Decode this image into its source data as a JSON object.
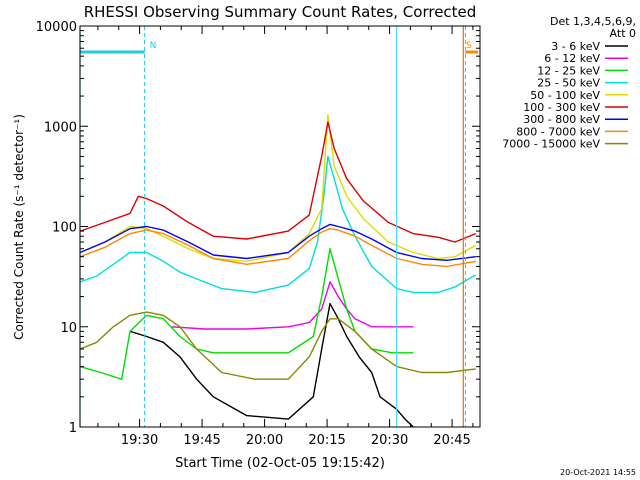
{
  "chart_data": {
    "type": "line",
    "title": "RHESSI Observing Summary Count Rates, Corrected",
    "xlabel": "Start Time (02-Oct-05 19:15:42)",
    "ylabel": "Corrected Count Rate (s⁻¹ detector⁻¹)",
    "yscale": "log",
    "ylim": [
      1,
      10000
    ],
    "xlim_minutes": [
      0,
      96
    ],
    "x_tick_labels": [
      "19:30",
      "19:45",
      "20:00",
      "20:15",
      "20:30",
      "20:45"
    ],
    "x_tick_minutes": [
      14.3,
      29.3,
      44.3,
      59.3,
      74.3,
      89.3
    ],
    "y_tick_labels": [
      "1",
      "10",
      "100",
      "1000",
      "10000"
    ],
    "y_tick_values": [
      1,
      10,
      100,
      1000,
      10000
    ],
    "legend_header": [
      "Det 1,3,4,5,6,9,",
      "Att 0"
    ],
    "legend_position": "top-right",
    "footer": "20-Oct-2021 14:55",
    "markers": [
      {
        "label": "N",
        "color": "#22ccdd",
        "bar_start": 0,
        "bar_end": 15.5,
        "line_at": 15.5
      },
      {
        "label": "S",
        "color": "#ff8800",
        "bar_start": 92.5,
        "bar_end": 95.5,
        "line_at": 92.5
      }
    ],
    "vlines": [
      {
        "x": 0,
        "color": "#44ddff"
      },
      {
        "x": 76,
        "color": "#44ddff"
      },
      {
        "x": 92,
        "color": "#dd7700"
      }
    ],
    "series": [
      {
        "name": "3 - 6 keV",
        "color": "#000000",
        "x": [
          12,
          16,
          20,
          24,
          28,
          32,
          40,
          50,
          56,
          58,
          60,
          62,
          64,
          67,
          70,
          72,
          76,
          78,
          80
        ],
        "y": [
          9,
          8,
          7,
          5,
          3,
          2,
          1.3,
          1.2,
          2,
          6,
          17,
          12,
          8,
          5,
          3.5,
          2,
          1.5,
          1.2,
          1
        ]
      },
      {
        "name": "6 - 12 keV",
        "color": "#ee00ee",
        "x": [
          22,
          30,
          40,
          50,
          55,
          58,
          60,
          62,
          64,
          66,
          70,
          75,
          80
        ],
        "y": [
          10,
          9.5,
          9.5,
          10,
          11,
          15,
          28,
          20,
          15,
          12,
          10,
          10,
          10
        ]
      },
      {
        "name": "12 - 25 keV",
        "color": "#00dd00",
        "x": [
          0,
          5,
          10,
          12,
          16,
          20,
          24,
          28,
          32,
          40,
          50,
          56,
          58,
          60,
          62,
          64,
          66,
          70,
          75,
          80
        ],
        "y": [
          4,
          3.5,
          3,
          9,
          13,
          12,
          8,
          6,
          5.5,
          5.5,
          5.5,
          8,
          20,
          60,
          30,
          15,
          9,
          6,
          5.5,
          5.5
        ]
      },
      {
        "name": "25 - 50 keV",
        "color": "#00dddd",
        "x": [
          0,
          4,
          8,
          12,
          16,
          20,
          24,
          28,
          34,
          42,
          50,
          55,
          57,
          58.5,
          59.5,
          61,
          63,
          66,
          70,
          76,
          80,
          86,
          90,
          95
        ],
        "y": [
          28,
          32,
          42,
          55,
          55,
          45,
          35,
          30,
          24,
          22,
          26,
          38,
          70,
          200,
          500,
          300,
          150,
          80,
          40,
          24,
          22,
          22,
          25,
          33
        ]
      },
      {
        "name": "50 - 100 keV",
        "color": "#dddd00",
        "x": [
          0,
          6,
          12,
          16,
          20,
          26,
          32,
          40,
          50,
          55,
          58,
          59.5,
          61,
          64,
          68,
          74,
          80,
          86,
          90,
          95
        ],
        "y": [
          55,
          70,
          100,
          95,
          80,
          60,
          48,
          45,
          55,
          85,
          150,
          1300,
          400,
          200,
          120,
          70,
          55,
          48,
          50,
          65
        ]
      },
      {
        "name": "100 - 300 keV",
        "color": "#dd0000",
        "x": [
          0,
          6,
          12,
          14,
          16,
          20,
          26,
          32,
          40,
          50,
          55,
          58,
          59.5,
          61,
          64,
          68,
          74,
          80,
          86,
          90,
          95
        ],
        "y": [
          90,
          110,
          135,
          200,
          190,
          160,
          110,
          80,
          75,
          90,
          130,
          500,
          1100,
          600,
          300,
          180,
          110,
          85,
          78,
          70,
          85
        ]
      },
      {
        "name": "300 - 800 keV",
        "color": "#0000ff",
        "x": [
          0,
          6,
          12,
          16,
          20,
          26,
          32,
          40,
          50,
          55,
          58,
          60,
          62,
          66,
          70,
          76,
          82,
          88,
          95
        ],
        "y": [
          55,
          70,
          95,
          100,
          92,
          70,
          52,
          48,
          55,
          80,
          95,
          105,
          100,
          90,
          75,
          55,
          48,
          46,
          50
        ]
      },
      {
        "name": "800 - 7000 keV",
        "color": "#ff8800",
        "x": [
          0,
          6,
          12,
          16,
          20,
          26,
          32,
          40,
          50,
          55,
          58,
          60,
          62,
          66,
          70,
          76,
          82,
          88,
          95
        ],
        "y": [
          50,
          62,
          85,
          92,
          85,
          65,
          48,
          42,
          48,
          72,
          88,
          95,
          92,
          80,
          65,
          48,
          42,
          40,
          45
        ]
      },
      {
        "name": "7000 - 15000 keV",
        "color": "#888800",
        "x": [
          0,
          4,
          8,
          12,
          16,
          20,
          24,
          28,
          34,
          42,
          50,
          55,
          58,
          60,
          62,
          66,
          70,
          76,
          82,
          88,
          95
        ],
        "y": [
          6,
          7,
          10,
          13,
          14,
          13,
          10,
          6,
          3.5,
          3,
          3,
          5,
          9,
          12,
          12,
          9,
          6,
          4,
          3.5,
          3.5,
          3.8
        ]
      }
    ]
  }
}
